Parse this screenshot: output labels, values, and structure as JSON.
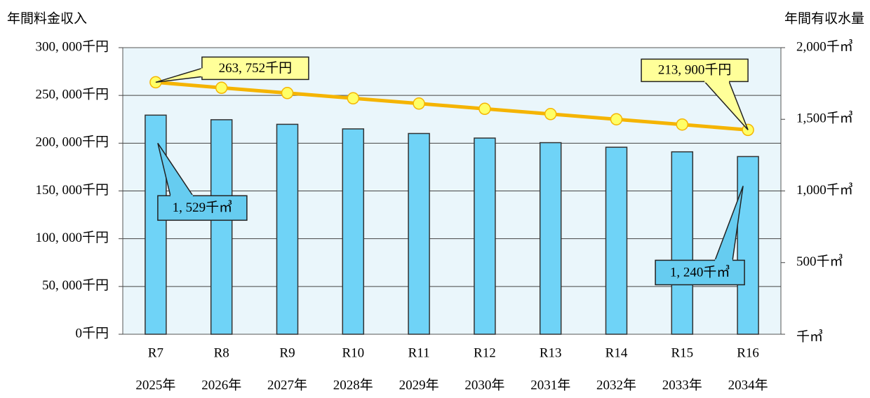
{
  "chart_data": {
    "type": "bar_line",
    "ylabel": "年間料金収入",
    "y2label": "年間有収水量",
    "categories": [
      "R7",
      "R8",
      "R9",
      "R10",
      "R11",
      "R12",
      "R13",
      "R14",
      "R15",
      "R16"
    ],
    "years": [
      "2025年",
      "2026年",
      "2027年",
      "2028年",
      "2029年",
      "2030年",
      "2031年",
      "2032年",
      "2033年",
      "2034年"
    ],
    "ylim": [
      0,
      300000
    ],
    "yticks": [
      {
        "value": 0,
        "label": "0千円"
      },
      {
        "value": 50000,
        "label": "50, 000千円"
      },
      {
        "value": 100000,
        "label": "100, 000千円"
      },
      {
        "value": 150000,
        "label": "150, 000千円"
      },
      {
        "value": 200000,
        "label": "200, 000千円"
      },
      {
        "value": 250000,
        "label": "250, 000千円"
      },
      {
        "value": 300000,
        "label": "300, 000千円"
      }
    ],
    "y2lim": [
      0,
      2000
    ],
    "y2ticks": [
      {
        "value": 0,
        "label": "千㎥"
      },
      {
        "value": 500,
        "label": "500千㎥"
      },
      {
        "value": 1000,
        "label": "1,000千㎥"
      },
      {
        "value": 1500,
        "label": "1,500千㎥"
      },
      {
        "value": 2000,
        "label": "2,000千㎥"
      }
    ],
    "grid": true,
    "series": [
      {
        "name": "年間有収水量",
        "type": "bar",
        "axis": "y2",
        "color": "#6fd3f7",
        "values": [
          1529,
          1497,
          1465,
          1433,
          1401,
          1369,
          1337,
          1305,
          1273,
          1240
        ],
        "value_labels": [
          "1, 529千㎥",
          null,
          null,
          null,
          null,
          null,
          null,
          null,
          null,
          "1, 240千㎥"
        ]
      },
      {
        "name": "年間料金収入",
        "type": "line",
        "axis": "y",
        "color": "#f5b400",
        "values": [
          263752,
          258000,
          252500,
          247000,
          241500,
          236000,
          230500,
          225000,
          219500,
          213900
        ],
        "value_labels": [
          "263, 752千円",
          null,
          null,
          null,
          null,
          null,
          null,
          null,
          null,
          "213, 900千円"
        ]
      }
    ]
  }
}
